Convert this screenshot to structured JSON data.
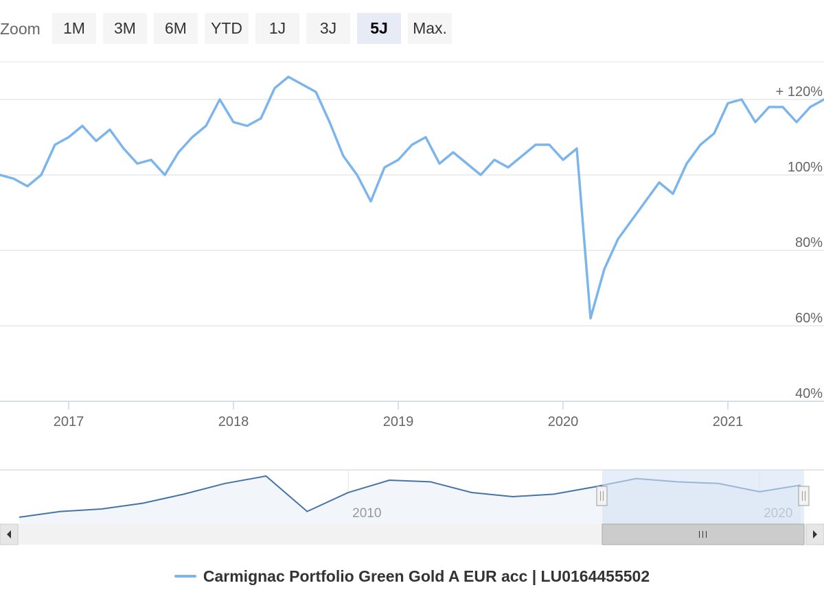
{
  "zoom": {
    "label": "Zoom",
    "buttons": [
      "1M",
      "3M",
      "6M",
      "YTD",
      "1J",
      "3J",
      "5J",
      "Max."
    ],
    "active": "5J"
  },
  "colors": {
    "series": "#7cb5ec",
    "navigator_series": "#4572a7",
    "grid": "#e6e6e6",
    "axis": "#ccd6eb",
    "selection": "#d4e3f5",
    "active_button": "#e6ebf5"
  },
  "chart_data": [
    {
      "type": "line",
      "title": "",
      "xlabel": "",
      "ylabel": "",
      "ylim": [
        40,
        130
      ],
      "xlim": [
        "2016-08",
        "2021-08"
      ],
      "x_ticks": [
        "2017",
        "2018",
        "2019",
        "2020",
        "2021"
      ],
      "y_ticks": [
        "+ 120%",
        "100%",
        "80%",
        "60%",
        "40%"
      ],
      "y_tick_values": [
        120,
        100,
        80,
        60,
        40
      ],
      "grid": true,
      "legend": "bottom",
      "series": [
        {
          "name": "Carmignac Portfolio Green Gold A EUR acc | LU0164455502",
          "x": [
            "2016-08",
            "2016-09",
            "2016-10",
            "2016-11",
            "2016-12",
            "2017-01",
            "2017-02",
            "2017-03",
            "2017-04",
            "2017-05",
            "2017-06",
            "2017-07",
            "2017-08",
            "2017-09",
            "2017-10",
            "2017-11",
            "2017-12",
            "2018-01",
            "2018-02",
            "2018-03",
            "2018-04",
            "2018-05",
            "2018-06",
            "2018-07",
            "2018-08",
            "2018-09",
            "2018-10",
            "2018-11",
            "2018-12",
            "2019-01",
            "2019-02",
            "2019-03",
            "2019-04",
            "2019-05",
            "2019-06",
            "2019-07",
            "2019-08",
            "2019-09",
            "2019-10",
            "2019-11",
            "2019-12",
            "2020-01",
            "2020-02",
            "2020-03",
            "2020-04",
            "2020-05",
            "2020-06",
            "2020-07",
            "2020-08",
            "2020-09",
            "2020-10",
            "2020-11",
            "2020-12",
            "2021-01",
            "2021-02",
            "2021-03",
            "2021-04",
            "2021-05",
            "2021-06",
            "2021-07",
            "2021-08"
          ],
          "values": [
            100,
            99,
            97,
            100,
            108,
            110,
            113,
            109,
            112,
            107,
            103,
            104,
            100,
            106,
            110,
            113,
            120,
            114,
            113,
            115,
            123,
            126,
            124,
            122,
            114,
            105,
            100,
            93,
            102,
            104,
            108,
            110,
            103,
            106,
            103,
            100,
            104,
            102,
            105,
            108,
            108,
            104,
            107,
            62,
            75,
            83,
            88,
            93,
            98,
            95,
            103,
            108,
            111,
            119,
            120,
            114,
            118,
            118,
            114,
            118,
            120
          ]
        }
      ]
    },
    {
      "type": "area",
      "title": "",
      "x_ticks": [
        "2010",
        "2020"
      ],
      "selection": [
        "2016-08",
        "2021-08"
      ],
      "series": [
        {
          "name": "",
          "x": [
            "2002",
            "2003",
            "2004",
            "2005",
            "2006",
            "2007",
            "2008",
            "2009",
            "2010",
            "2011",
            "2012",
            "2013",
            "2014",
            "2015",
            "2016",
            "2017",
            "2018",
            "2019",
            "2020",
            "2021"
          ],
          "values": [
            5,
            12,
            15,
            22,
            33,
            46,
            55,
            12,
            35,
            50,
            48,
            35,
            30,
            33,
            42,
            52,
            48,
            46,
            36,
            44
          ]
        }
      ]
    }
  ]
}
